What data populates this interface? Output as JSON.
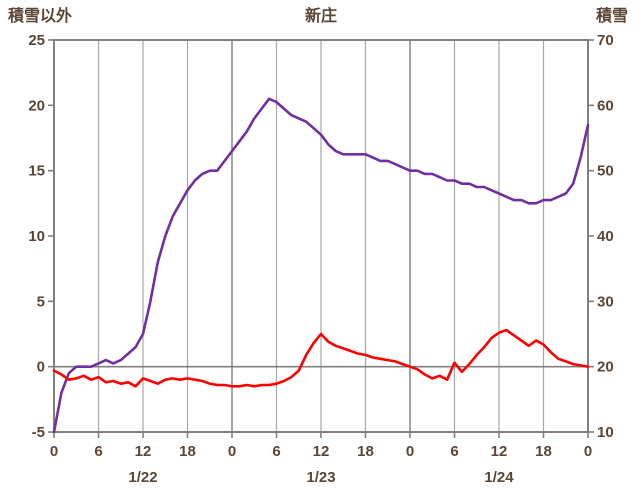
{
  "chart_data": {
    "type": "line",
    "title": "新庄",
    "left_axis": {
      "label": "積雪以外",
      "min": -5,
      "max": 25,
      "ticks": [
        -5,
        0,
        5,
        10,
        15,
        20,
        25
      ]
    },
    "right_axis": {
      "label": "積雪",
      "min": 10,
      "max": 70,
      "ticks": [
        10,
        20,
        30,
        40,
        50,
        60,
        70
      ]
    },
    "x_axis": {
      "min": 0,
      "max": 72,
      "tick_interval": 6,
      "hour_labels": [
        "0",
        "6",
        "12",
        "18",
        "0",
        "6",
        "12",
        "18",
        "0",
        "6",
        "12",
        "18",
        "0"
      ],
      "date_labels": [
        {
          "label": "1/22",
          "hour": 12
        },
        {
          "label": "1/23",
          "hour": 36
        },
        {
          "label": "1/24",
          "hour": 60
        }
      ]
    },
    "zero_line_value": 0,
    "grid": "vertical-only",
    "colors": {
      "snow_line": "#7030A0",
      "other_line": "#FF0000",
      "frame": "#808080",
      "grid": "#A8A8A8",
      "day_grid": "#8C8C8C",
      "text": "#5B4636"
    },
    "series": [
      {
        "name": "積雪",
        "axis": "right",
        "color_key": "snow_line",
        "x_start": 0,
        "x_step": 1,
        "values": [
          10,
          16,
          19,
          20,
          20,
          20,
          20.5,
          21,
          20.5,
          21,
          22,
          23,
          25,
          30,
          36,
          40,
          43,
          45,
          47,
          48.5,
          49.5,
          50,
          50,
          51.5,
          53,
          54.5,
          56,
          58,
          59.5,
          61,
          60.5,
          59.5,
          58.5,
          58,
          57.5,
          56.5,
          55.5,
          54,
          53,
          52.5,
          52.5,
          52.5,
          52.5,
          52,
          51.5,
          51.5,
          51,
          50.5,
          50,
          50,
          49.5,
          49.5,
          49,
          48.5,
          48.5,
          48,
          48,
          47.5,
          47.5,
          47,
          46.5,
          46,
          45.5,
          45.5,
          45,
          45,
          45.5,
          45.5,
          46,
          46.5,
          48,
          52,
          57
        ]
      },
      {
        "name": "積雪以外",
        "axis": "left",
        "color_key": "other_line",
        "x_start": 0,
        "x_step": 1,
        "values": [
          -0.3,
          -0.6,
          -1.0,
          -0.9,
          -0.7,
          -1.0,
          -0.8,
          -1.2,
          -1.1,
          -1.3,
          -1.2,
          -1.5,
          -0.9,
          -1.1,
          -1.3,
          -1.0,
          -0.9,
          -1.0,
          -0.9,
          -1.0,
          -1.1,
          -1.3,
          -1.4,
          -1.4,
          -1.5,
          -1.5,
          -1.4,
          -1.5,
          -1.4,
          -1.4,
          -1.3,
          -1.1,
          -0.8,
          -0.3,
          0.9,
          1.8,
          2.5,
          1.9,
          1.6,
          1.4,
          1.2,
          1.0,
          0.9,
          0.7,
          0.6,
          0.5,
          0.4,
          0.2,
          0.0,
          -0.2,
          -0.6,
          -0.9,
          -0.7,
          -1.0,
          0.3,
          -0.4,
          0.2,
          0.9,
          1.5,
          2.2,
          2.6,
          2.8,
          2.4,
          2.0,
          1.6,
          2.0,
          1.7,
          1.1,
          0.6,
          0.4,
          0.2,
          0.1,
          0.0
        ]
      }
    ]
  }
}
